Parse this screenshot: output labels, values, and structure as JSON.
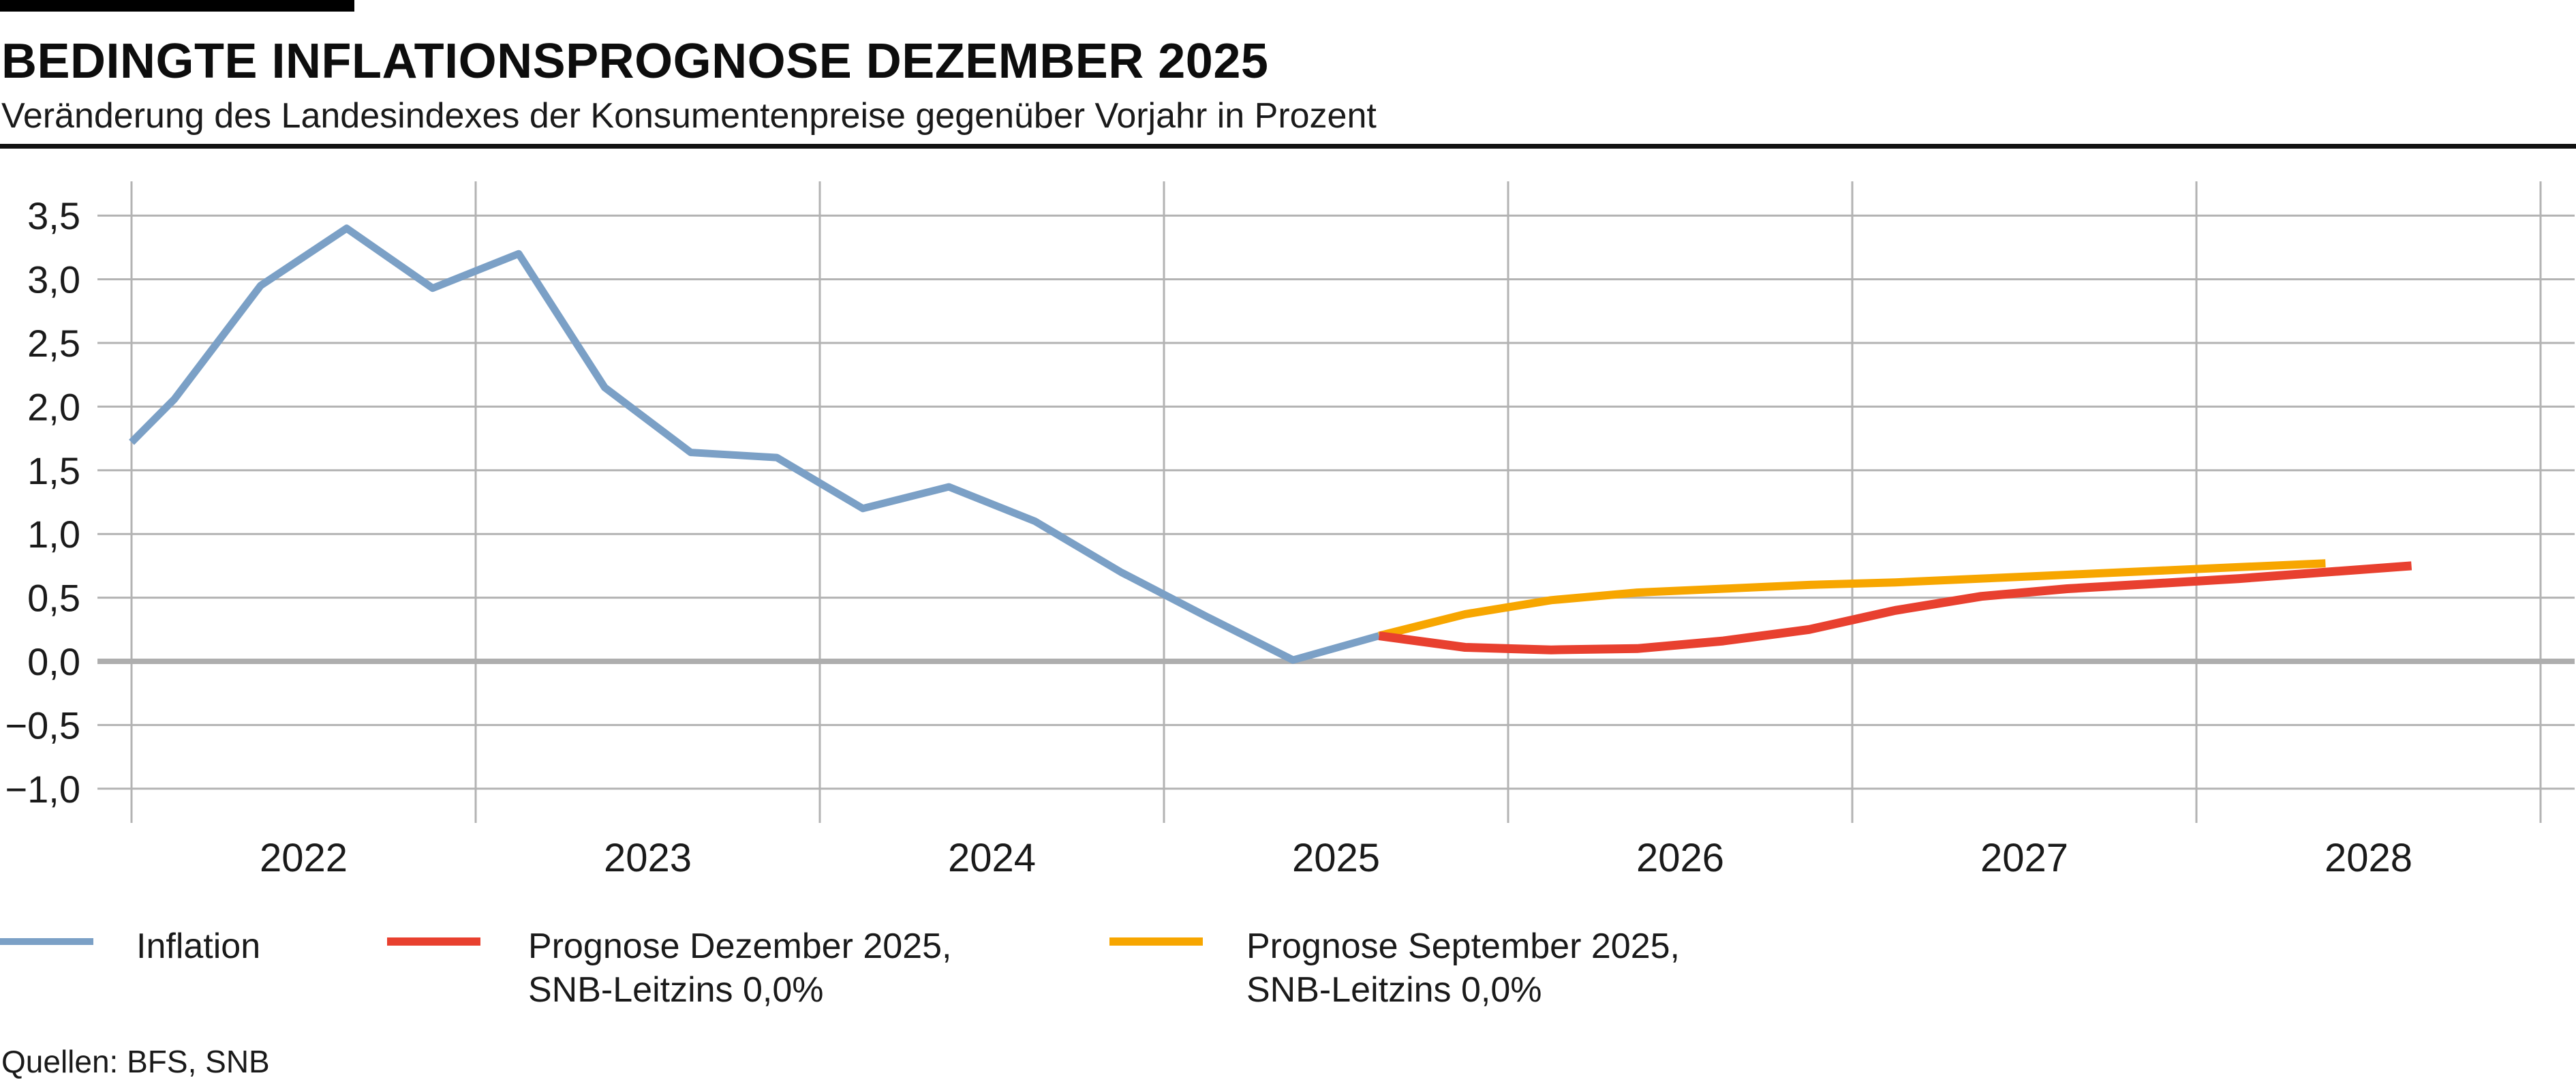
{
  "header": {
    "title": "BEDINGTE INFLATIONSPROGNOSE DEZEMBER 2025",
    "subtitle": "Veränderung des Landesindexes der Konsumentenpreise gegenüber Vorjahr in Prozent"
  },
  "source": "Quellen: BFS, SNB",
  "colors": {
    "inflation_line": "#7ba0c6",
    "forecast_december_line": "#e8402f",
    "forecast_september_line": "#f7a600",
    "grid": "#b3b3b3",
    "zero_line": "#aeaeae",
    "text": "#1a1a1a",
    "header_bar": "#000000"
  },
  "legend": [
    {
      "name": "inflation",
      "color": "#7ba0c6",
      "line1": "Inflation",
      "line2": ""
    },
    {
      "name": "forecast-december",
      "color": "#e8402f",
      "line1": "Prognose Dezember 2025,",
      "line2": "SNB-Leitzins 0,0%"
    },
    {
      "name": "forecast-september",
      "color": "#f7a600",
      "line1": "Prognose September 2025,",
      "line2": "SNB-Leitzins 0,0%"
    }
  ],
  "chart_data": {
    "type": "line",
    "title": "Bedingte Inflationsprognose Dezember 2025",
    "xlabel": "",
    "ylabel": "Veränderung des Landesindexes der Konsumentenpreise gegenüber Vorjahr in Prozent",
    "ylim": [
      -1.0,
      3.5
    ],
    "xlim_years": [
      2021.9,
      2029.1
    ],
    "grid": true,
    "legend_position": "bottom",
    "y_ticks": [
      {
        "value": 3.5,
        "label": "3,5"
      },
      {
        "value": 3.0,
        "label": "3,0"
      },
      {
        "value": 2.5,
        "label": "2,5"
      },
      {
        "value": 2.0,
        "label": "2,0"
      },
      {
        "value": 1.5,
        "label": "1,5"
      },
      {
        "value": 1.0,
        "label": "1,0"
      },
      {
        "value": 0.5,
        "label": "0,5"
      },
      {
        "value": 0.0,
        "label": "0,0"
      },
      {
        "value": -0.5,
        "label": "−0,5"
      },
      {
        "value": -1.0,
        "label": "−1,0"
      }
    ],
    "x_gridline_years": [
      2022,
      2023,
      2024,
      2025,
      2026,
      2027,
      2028,
      2029
    ],
    "x_ticks": [
      {
        "x": 2022.5,
        "label": "2022"
      },
      {
        "x": 2023.5,
        "label": "2023"
      },
      {
        "x": 2024.5,
        "label": "2024"
      },
      {
        "x": 2025.5,
        "label": "2025"
      },
      {
        "x": 2026.5,
        "label": "2026"
      },
      {
        "x": 2027.5,
        "label": "2027"
      },
      {
        "x": 2028.5,
        "label": "2028"
      }
    ],
    "series": [
      {
        "name": "Inflation",
        "color": "#7ba0c6",
        "stroke_width": 11,
        "points": [
          [
            2022.0,
            1.72
          ],
          [
            2022.125,
            2.06
          ],
          [
            2022.375,
            2.95
          ],
          [
            2022.625,
            3.4
          ],
          [
            2022.875,
            2.93
          ],
          [
            2023.125,
            3.2
          ],
          [
            2023.375,
            2.15
          ],
          [
            2023.625,
            1.64
          ],
          [
            2023.875,
            1.6
          ],
          [
            2024.125,
            1.2
          ],
          [
            2024.375,
            1.37
          ],
          [
            2024.625,
            1.1
          ],
          [
            2024.875,
            0.7
          ],
          [
            2025.125,
            0.35
          ],
          [
            2025.375,
            0.01
          ],
          [
            2025.625,
            0.2
          ]
        ]
      },
      {
        "name": "Prognose September 2025, SNB-Leitzins 0,0%",
        "color": "#f7a600",
        "stroke_width": 12,
        "points": [
          [
            2025.625,
            0.2
          ],
          [
            2025.875,
            0.37
          ],
          [
            2026.125,
            0.48
          ],
          [
            2026.375,
            0.54
          ],
          [
            2026.625,
            0.57
          ],
          [
            2026.875,
            0.6
          ],
          [
            2027.125,
            0.62
          ],
          [
            2027.375,
            0.65
          ],
          [
            2027.625,
            0.68
          ],
          [
            2027.875,
            0.71
          ],
          [
            2028.125,
            0.74
          ],
          [
            2028.375,
            0.77
          ]
        ]
      },
      {
        "name": "Prognose Dezember 2025, SNB-Leitzins 0,0%",
        "color": "#e8402f",
        "stroke_width": 13,
        "points": [
          [
            2025.625,
            0.2
          ],
          [
            2025.875,
            0.11
          ],
          [
            2026.125,
            0.09
          ],
          [
            2026.375,
            0.1
          ],
          [
            2026.625,
            0.16
          ],
          [
            2026.875,
            0.25
          ],
          [
            2027.125,
            0.4
          ],
          [
            2027.375,
            0.51
          ],
          [
            2027.625,
            0.57
          ],
          [
            2027.875,
            0.61
          ],
          [
            2028.125,
            0.65
          ],
          [
            2028.375,
            0.7
          ],
          [
            2028.625,
            0.75
          ]
        ]
      }
    ]
  }
}
